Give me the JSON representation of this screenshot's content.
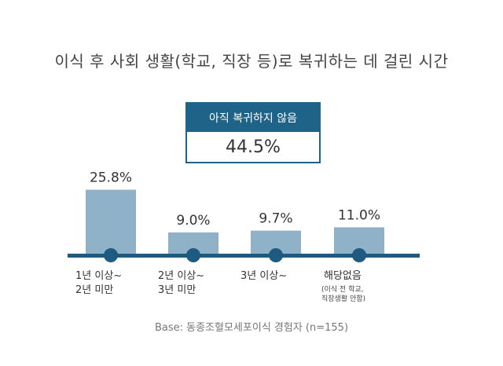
{
  "title": "이식 후 사회 생활(학교, 직장 등)로 복귀하는 데 걸린 시간",
  "callout": {
    "label": "아직 복귀하지 않음",
    "value": "44.5%"
  },
  "base_note": "Base: 동종조혈모세포이식 경험자 (n=155)",
  "colors": {
    "bar": "#8fb2c8",
    "axis": "#1f5a80",
    "marker": "#1f5a80",
    "callout": "#1f6488"
  },
  "chart_data": {
    "type": "bar",
    "categories": [
      {
        "lines": [
          "1년 이상~",
          "2년 미만"
        ],
        "note": []
      },
      {
        "lines": [
          "2년 이상~",
          "3년 미만"
        ],
        "note": []
      },
      {
        "lines": [
          "3년 이상~"
        ],
        "note": []
      },
      {
        "lines": [
          "해당없음"
        ],
        "note": [
          "(이식 전 학교,",
          "직장생활 안함)"
        ]
      }
    ],
    "values": [
      25.8,
      9.0,
      9.7,
      11.0
    ],
    "value_labels": [
      "25.8%",
      "9.0%",
      "9.7%",
      "11.0%"
    ],
    "ylim": [
      0,
      30
    ],
    "grid": false,
    "legend": "none"
  }
}
